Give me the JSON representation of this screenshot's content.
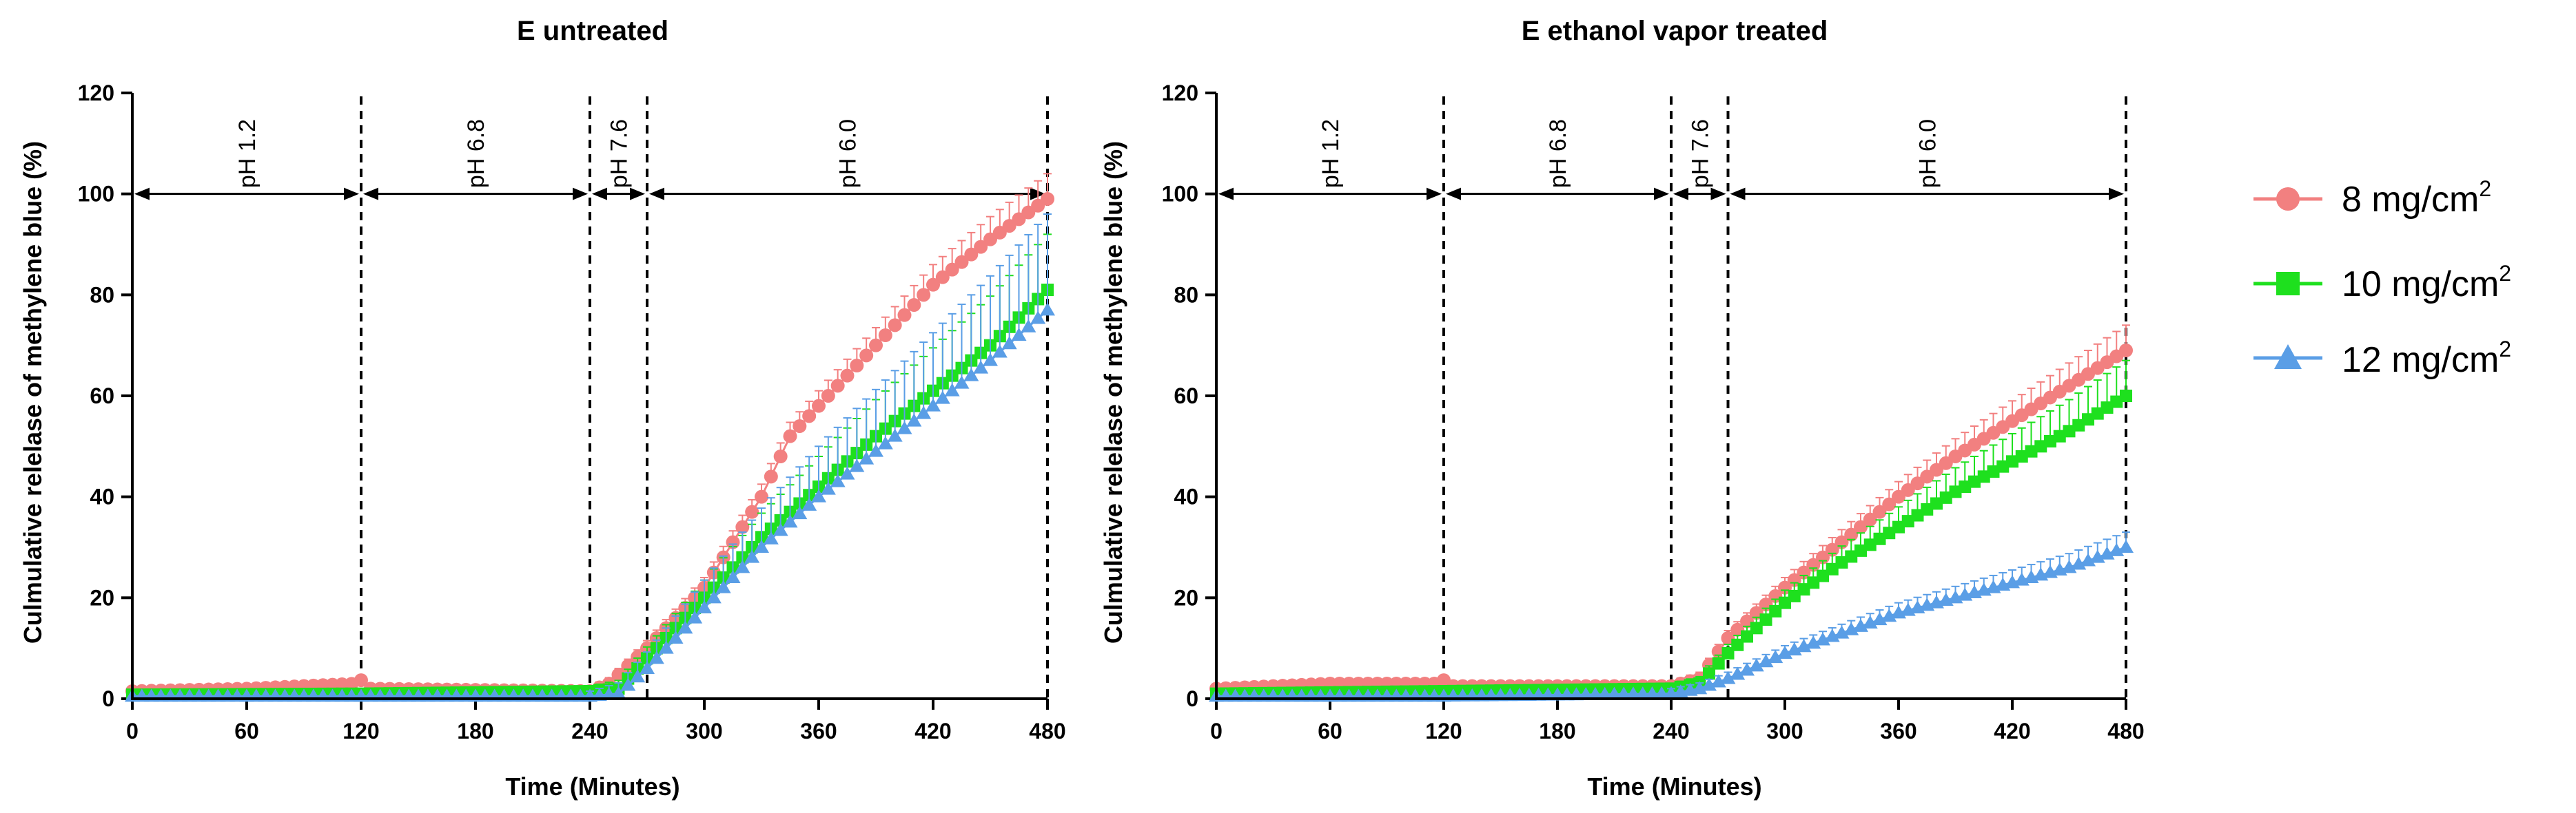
{
  "chart_data": [
    {
      "type": "line",
      "title": "E untreated",
      "xlabel": "Time (Minutes)",
      "ylabel": "Culmulative relelase of methylene blue (%)",
      "xlim": [
        0,
        480
      ],
      "ylim": [
        0,
        120
      ],
      "xticks": [
        "0",
        "60",
        "120",
        "180",
        "240",
        "300",
        "360",
        "420",
        "480"
      ],
      "yticks": [
        "0",
        "20",
        "40",
        "60",
        "80",
        "100",
        "120"
      ],
      "phase_boundaries": [
        120,
        240,
        270,
        480
      ],
      "phases": [
        {
          "label": "pH 1.2",
          "start": 0,
          "end": 120
        },
        {
          "label": "pH 6.8",
          "start": 120,
          "end": 240
        },
        {
          "label": "pH 7.6",
          "start": 240,
          "end": 270
        },
        {
          "label": "pH 6.0",
          "start": 270,
          "end": 480
        }
      ],
      "series": [
        {
          "name": "8 mg/cm2",
          "knots": [
            [
              0,
              1.5
            ],
            [
              60,
              2.0
            ],
            [
              118,
              3.0
            ],
            [
              121,
              4.0
            ],
            [
              125,
              2.0
            ],
            [
              240,
              1.5
            ],
            [
              250,
              3.0
            ],
            [
              270,
              10.0
            ],
            [
              300,
              22.0
            ],
            [
              330,
              40.0
            ],
            [
              345,
              52.0
            ],
            [
              360,
              58.0
            ],
            [
              390,
              70.0
            ],
            [
              420,
              82.0
            ],
            [
              450,
              91.0
            ],
            [
              480,
              99.0
            ]
          ],
          "error": 4
        },
        {
          "name": "10 mg/cm2",
          "knots": [
            [
              0,
              0.8
            ],
            [
              120,
              1.0
            ],
            [
              240,
              1.5
            ],
            [
              255,
              2.0
            ],
            [
              270,
              8.0
            ],
            [
              300,
              20.0
            ],
            [
              330,
              32.0
            ],
            [
              360,
              42.0
            ],
            [
              390,
              52.0
            ],
            [
              420,
              61.0
            ],
            [
              450,
              70.0
            ],
            [
              480,
              81.0
            ]
          ],
          "error": 10
        },
        {
          "name": "12 mg/cm2",
          "knots": [
            [
              0,
              0.5
            ],
            [
              120,
              0.5
            ],
            [
              240,
              0.5
            ],
            [
              255,
              1.0
            ],
            [
              270,
              6.0
            ],
            [
              300,
              18.0
            ],
            [
              330,
              30.0
            ],
            [
              360,
              40.0
            ],
            [
              390,
              49.0
            ],
            [
              420,
              58.0
            ],
            [
              450,
              67.0
            ],
            [
              480,
              77.0
            ]
          ],
          "error": 18
        }
      ]
    },
    {
      "type": "line",
      "title": "E ethanol vapor treated",
      "xlabel": "Time (Minutes)",
      "ylabel": "Culmulative relelase of methylene blue (%)",
      "xlim": [
        0,
        480
      ],
      "ylim": [
        0,
        120
      ],
      "xticks": [
        "0",
        "60",
        "120",
        "180",
        "240",
        "300",
        "360",
        "420",
        "480"
      ],
      "yticks": [
        "0",
        "20",
        "40",
        "60",
        "80",
        "100",
        "120"
      ],
      "phase_boundaries": [
        120,
        240,
        270,
        480
      ],
      "phases": [
        {
          "label": "pH 1.2",
          "start": 0,
          "end": 120
        },
        {
          "label": "pH 6.8",
          "start": 120,
          "end": 240
        },
        {
          "label": "pH 7.6",
          "start": 240,
          "end": 270
        },
        {
          "label": "pH 6.0",
          "start": 270,
          "end": 480
        }
      ],
      "series": [
        {
          "name": "8 mg/cm2",
          "knots": [
            [
              0,
              2.0
            ],
            [
              60,
              3.0
            ],
            [
              118,
              3.0
            ],
            [
              121,
              4.0
            ],
            [
              125,
              2.5
            ],
            [
              240,
              2.5
            ],
            [
              255,
              4.0
            ],
            [
              270,
              12.0
            ],
            [
              300,
              22.0
            ],
            [
              330,
              31.0
            ],
            [
              360,
              40.0
            ],
            [
              390,
              48.0
            ],
            [
              420,
              55.0
            ],
            [
              450,
              62.0
            ],
            [
              480,
              69.0
            ]
          ],
          "error": 4
        },
        {
          "name": "10 mg/cm2",
          "knots": [
            [
              0,
              1.0
            ],
            [
              120,
              1.5
            ],
            [
              240,
              2.0
            ],
            [
              255,
              3.0
            ],
            [
              270,
              9.0
            ],
            [
              300,
              19.0
            ],
            [
              330,
              27.0
            ],
            [
              360,
              34.0
            ],
            [
              390,
              41.0
            ],
            [
              420,
              47.0
            ],
            [
              450,
              53.0
            ],
            [
              480,
              60.0
            ]
          ],
          "error": 6
        },
        {
          "name": "12 mg/cm2",
          "knots": [
            [
              0,
              0.5
            ],
            [
              120,
              0.5
            ],
            [
              240,
              1.0
            ],
            [
              255,
              2.0
            ],
            [
              270,
              4.0
            ],
            [
              300,
              9.0
            ],
            [
              330,
              13.0
            ],
            [
              360,
              17.0
            ],
            [
              390,
              20.0
            ],
            [
              420,
              23.0
            ],
            [
              450,
              26.0
            ],
            [
              480,
              30.0
            ]
          ],
          "error": 2
        }
      ]
    }
  ],
  "legend": [
    {
      "base": "8 mg/cm",
      "sup": "2",
      "color": "#f28080",
      "marker": "circle"
    },
    {
      "base": "10 mg/cm",
      "sup": "2",
      "color": "#1ee01e",
      "marker": "square"
    },
    {
      "base": "12 mg/cm",
      "sup": "2",
      "color": "#5a9ee6",
      "marker": "triangle"
    }
  ],
  "colors": {
    "8 mg/cm2": "#f28080",
    "10 mg/cm2": "#1ee01e",
    "12 mg/cm2": "#5a9ee6"
  },
  "markers": {
    "8 mg/cm2": "circle",
    "10 mg/cm2": "square",
    "12 mg/cm2": "triangle"
  }
}
